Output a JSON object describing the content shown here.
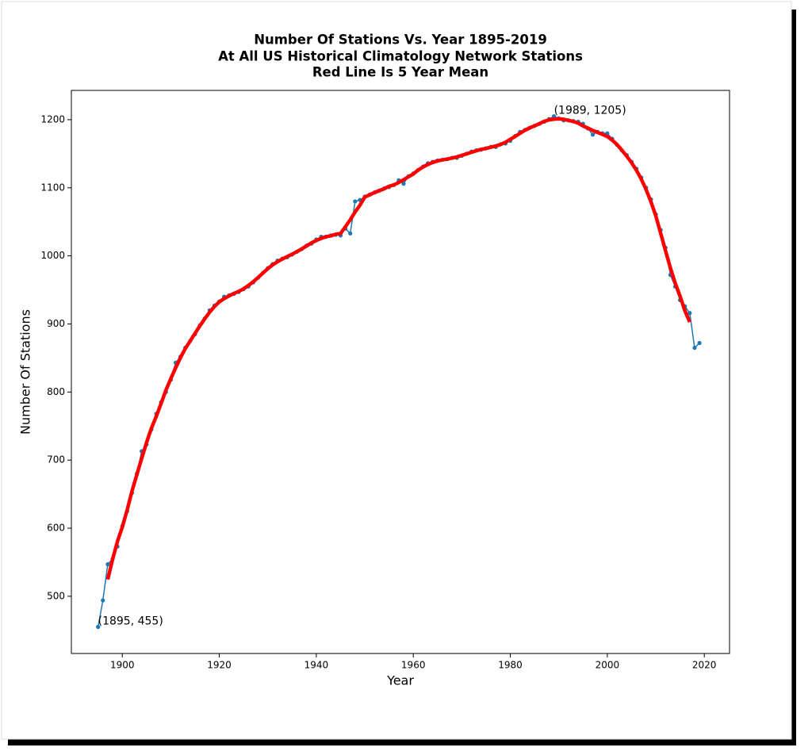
{
  "chart_data": {
    "type": "line",
    "title": [
      "Number Of Stations Vs. Year 1895-2019",
      "At All US Historical Climatology Network Stations",
      "Red Line Is 5 Year Mean"
    ],
    "x_label": "Year",
    "y_label": "Number Of Stations",
    "x": [
      1895,
      1896,
      1897,
      1898,
      1899,
      1900,
      1901,
      1902,
      1903,
      1904,
      1905,
      1906,
      1907,
      1908,
      1909,
      1910,
      1911,
      1912,
      1913,
      1914,
      1915,
      1916,
      1917,
      1918,
      1919,
      1920,
      1921,
      1922,
      1923,
      1924,
      1925,
      1926,
      1927,
      1928,
      1929,
      1930,
      1931,
      1932,
      1933,
      1934,
      1935,
      1936,
      1937,
      1938,
      1939,
      1940,
      1941,
      1942,
      1943,
      1944,
      1945,
      1946,
      1947,
      1948,
      1949,
      1950,
      1951,
      1952,
      1953,
      1954,
      1955,
      1956,
      1957,
      1958,
      1959,
      1960,
      1961,
      1962,
      1963,
      1964,
      1965,
      1966,
      1967,
      1968,
      1969,
      1970,
      1971,
      1972,
      1973,
      1974,
      1975,
      1976,
      1977,
      1978,
      1979,
      1980,
      1981,
      1982,
      1983,
      1984,
      1985,
      1986,
      1987,
      1988,
      1989,
      1990,
      1991,
      1992,
      1993,
      1994,
      1995,
      1996,
      1997,
      1998,
      1999,
      2000,
      2001,
      2002,
      2003,
      2004,
      2005,
      2006,
      2007,
      2008,
      2009,
      2010,
      2011,
      2012,
      2013,
      2014,
      2015,
      2016,
      2017,
      2018,
      2019
    ],
    "series": [
      {
        "color": "#1f77b4",
        "markers": true,
        "values": [
          455,
          494,
          547,
          555,
          573,
          603,
          625,
          652,
          680,
          713,
          723,
          745,
          768,
          785,
          800,
          818,
          843,
          852,
          865,
          875,
          885,
          898,
          908,
          920,
          927,
          933,
          940,
          942,
          944,
          947,
          951,
          955,
          961,
          968,
          975,
          982,
          988,
          993,
          996,
          998,
          1002,
          1006,
          1010,
          1015,
          1018,
          1024,
          1028,
          1028,
          1030,
          1031,
          1030,
          1040,
          1033,
          1080,
          1082,
          1087,
          1090,
          1093,
          1096,
          1099,
          1101,
          1104,
          1111,
          1106,
          1117,
          1121,
          1126,
          1131,
          1136,
          1138,
          1140,
          1141,
          1142,
          1144,
          1144,
          1147,
          1150,
          1153,
          1155,
          1156,
          1158,
          1160,
          1160,
          1164,
          1165,
          1169,
          1176,
          1182,
          1185,
          1188,
          1191,
          1194,
          1197,
          1201,
          1205,
          1202,
          1199,
          1199,
          1198,
          1197,
          1194,
          1187,
          1178,
          1182,
          1180,
          1180,
          1172,
          1163,
          1155,
          1148,
          1138,
          1128,
          1115,
          1100,
          1083,
          1061,
          1038,
          1012,
          972,
          955,
          935,
          926,
          916,
          865,
          872
        ]
      },
      {
        "color": "#ff0000",
        "markers": false,
        "values": [
          null,
          null,
          524.8,
          554.4,
          580.6,
          601.6,
          626.6,
          654.6,
          678.6,
          702.6,
          725.8,
          746.8,
          764.2,
          783.2,
          802.8,
          819.6,
          835.6,
          850.6,
          864,
          875,
          886.2,
          897.2,
          907.6,
          917.2,
          925.6,
          932.4,
          937.2,
          941.2,
          944.8,
          947.8,
          951.6,
          956.4,
          962,
          968.2,
          974.8,
          981.2,
          986.8,
          991.4,
          995.4,
          999,
          1002.4,
          1006.2,
          1010.2,
          1014.6,
          1019,
          1022.6,
          1025.6,
          1028.2,
          1029.4,
          1031.8,
          1032.8,
          1042.8,
          1053,
          1064.4,
          1074.4,
          1086.4,
          1089.6,
          1093,
          1095.8,
          1098.6,
          1102.2,
          1104.2,
          1107.8,
          1111.8,
          1116.2,
          1120.2,
          1126.2,
          1130.4,
          1134.2,
          1137.2,
          1139.4,
          1141,
          1142.2,
          1143.6,
          1145.4,
          1147.6,
          1149.8,
          1152.2,
          1154.4,
          1156.4,
          1157.8,
          1159.6,
          1161.4,
          1163.6,
          1166.8,
          1171.2,
          1175.4,
          1180,
          1184.4,
          1188,
          1191,
          1194.2,
          1197.6,
          1199.8,
          1200.8,
          1201.2,
          1200.6,
          1199,
          1197.4,
          1195,
          1190.8,
          1187.6,
          1184.2,
          1181.4,
          1178.4,
          1175.4,
          1170,
          1163.6,
          1155.2,
          1146.4,
          1136.8,
          1125.8,
          1112.8,
          1097.4,
          1079.4,
          1058.8,
          1033.2,
          1007.6,
          982.4,
          960,
          940.8,
          919.4,
          902.8,
          null,
          null
        ]
      }
    ],
    "annotations": [
      {
        "text": "(1989, 1205)",
        "x": 1989,
        "y": 1205
      },
      {
        "text": "(1895, 455)",
        "x": 1895,
        "y": 455
      }
    ],
    "xlim": [
      1889.5,
      2025.2
    ],
    "xticks": [
      1900,
      1920,
      1940,
      1960,
      1980,
      2000,
      2020
    ],
    "ylim": [
      416,
      1243
    ],
    "yticks": [
      500,
      600,
      700,
      800,
      900,
      1000,
      1100,
      1200
    ]
  }
}
